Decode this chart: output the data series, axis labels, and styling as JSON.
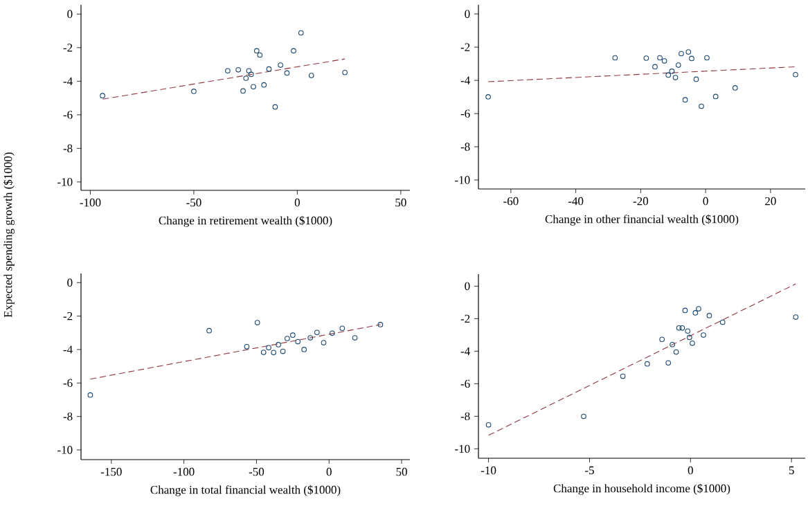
{
  "chart_data": [
    {
      "type": "scatter",
      "xlabel": "Change in retirement wealth ($1000)",
      "ylabel": "Expected spending growth ($1000)",
      "xlim": [
        -104.5,
        54.4
      ],
      "ylim": [
        -10.5,
        0.55
      ],
      "xticks": [
        -100,
        -50,
        0,
        50
      ],
      "yticks": [
        0,
        -2,
        -4,
        -6,
        -8,
        -10
      ],
      "series": [
        {
          "marker": "circle",
          "color": "#1a476f",
          "x": [
            -94.1,
            -50,
            -33.6,
            -28.5,
            -23.4,
            -22.3,
            -24.8,
            -26.2,
            -21.2,
            -19.6,
            -18.1,
            -16.1,
            -13.7,
            -10.7,
            -8.1,
            -5.0,
            -1.8,
            1.8,
            6.8,
            23.0
          ],
          "values": [
            -4.86,
            -4.6,
            -3.38,
            -3.32,
            -3.38,
            -3.59,
            -3.82,
            -4.58,
            -4.33,
            -2.19,
            -2.44,
            -4.22,
            -3.27,
            -5.53,
            -3.04,
            -3.51,
            -2.19,
            -1.12,
            -3.66,
            -3.48
          ]
        },
        {
          "type": "line",
          "line_style": "dashed",
          "color": "#90353b",
          "x": [
            -94,
            23
          ],
          "values": [
            -5.07,
            -2.67
          ]
        }
      ]
    },
    {
      "type": "scatter",
      "xlabel": "Change in other financial wealth ($1000)",
      "xlim": [
        -70,
        30.7
      ],
      "ylim": [
        -10.54,
        0.55
      ],
      "xticks": [
        -60,
        -40,
        -20,
        0,
        20
      ],
      "yticks": [
        0,
        -2,
        -4,
        -6,
        -8,
        -10
      ],
      "series": [
        {
          "marker": "circle",
          "color": "#1a476f",
          "x": [
            -67.0,
            -27.9,
            -18.3,
            -15.6,
            -14.1,
            -12.7,
            -11.5,
            -10.4,
            -9.3,
            -8.4,
            -7.5,
            -6.3,
            -5.3,
            -4.3,
            -2.9,
            -1.3,
            0.4,
            3.1,
            9.1,
            27.7
          ],
          "values": [
            -4.99,
            -2.64,
            -2.66,
            -3.18,
            -2.64,
            -2.83,
            -3.68,
            -3.45,
            -3.83,
            -3.08,
            -2.39,
            -5.17,
            -2.29,
            -2.68,
            -3.93,
            -5.56,
            -2.64,
            -4.97,
            -4.45,
            -3.65
          ]
        },
        {
          "type": "line",
          "line_style": "dashed",
          "color": "#90353b",
          "x": [
            -67,
            27.7
          ],
          "values": [
            -4.08,
            -3.18
          ]
        }
      ]
    },
    {
      "type": "scatter",
      "xlabel": "Change in total financial wealth ($1000)",
      "xlim": [
        -170.9,
        55.7
      ],
      "ylim": [
        -10.58,
        0.55
      ],
      "xticks": [
        -150,
        -100,
        -50,
        0,
        50
      ],
      "yticks": [
        0,
        -2,
        -4,
        -6,
        -8,
        -10
      ],
      "series": [
        {
          "marker": "circle",
          "color": "#1a476f",
          "x": [
            -164.5,
            -82.6,
            -56.7,
            -49.4,
            -45.1,
            -41.6,
            -38.2,
            -34.9,
            -31.8,
            -28.8,
            -25.0,
            -21.5,
            -17.2,
            -12.9,
            -8.3,
            -3.7,
            2.2,
            9.1,
            17.8,
            35.4
          ],
          "values": [
            -6.72,
            -2.87,
            -3.83,
            -2.39,
            -4.17,
            -3.89,
            -4.18,
            -3.71,
            -4.11,
            -3.34,
            -3.14,
            -3.53,
            -4.0,
            -3.3,
            -2.98,
            -3.59,
            -3.02,
            -2.73,
            -3.3,
            -2.51
          ]
        },
        {
          "type": "line",
          "line_style": "dashed",
          "color": "#90353b",
          "x": [
            -164.5,
            35.4
          ],
          "values": [
            -5.77,
            -2.51
          ]
        }
      ]
    },
    {
      "type": "scatter",
      "xlabel": "Change in household income ($1000)",
      "xlim": [
        -10.5,
        5.68
      ],
      "ylim": [
        -10.58,
        0.74
      ],
      "xticks": [
        -10,
        -5,
        0,
        5
      ],
      "yticks": [
        0,
        -2,
        -4,
        -6,
        -8,
        -10
      ],
      "series": [
        {
          "marker": "circle",
          "color": "#1a476f",
          "x": [
            -10.0,
            -5.29,
            -3.35,
            -2.14,
            -1.41,
            -1.1,
            -0.9,
            -0.71,
            -0.57,
            -0.41,
            -0.27,
            -0.14,
            -0.05,
            0.09,
            0.24,
            0.4,
            0.64,
            0.93,
            1.59,
            5.21
          ],
          "values": [
            -8.53,
            -8.01,
            -5.54,
            -4.78,
            -3.27,
            -4.72,
            -3.59,
            -4.05,
            -2.57,
            -2.57,
            -1.49,
            -2.76,
            -3.15,
            -3.51,
            -1.64,
            -1.39,
            -3.01,
            -1.81,
            -2.22,
            -1.9
          ]
        },
        {
          "type": "line",
          "line_style": "dashed",
          "color": "#90353b",
          "x": [
            -10,
            5.21
          ],
          "values": [
            -9.17,
            0.14
          ]
        }
      ]
    }
  ]
}
